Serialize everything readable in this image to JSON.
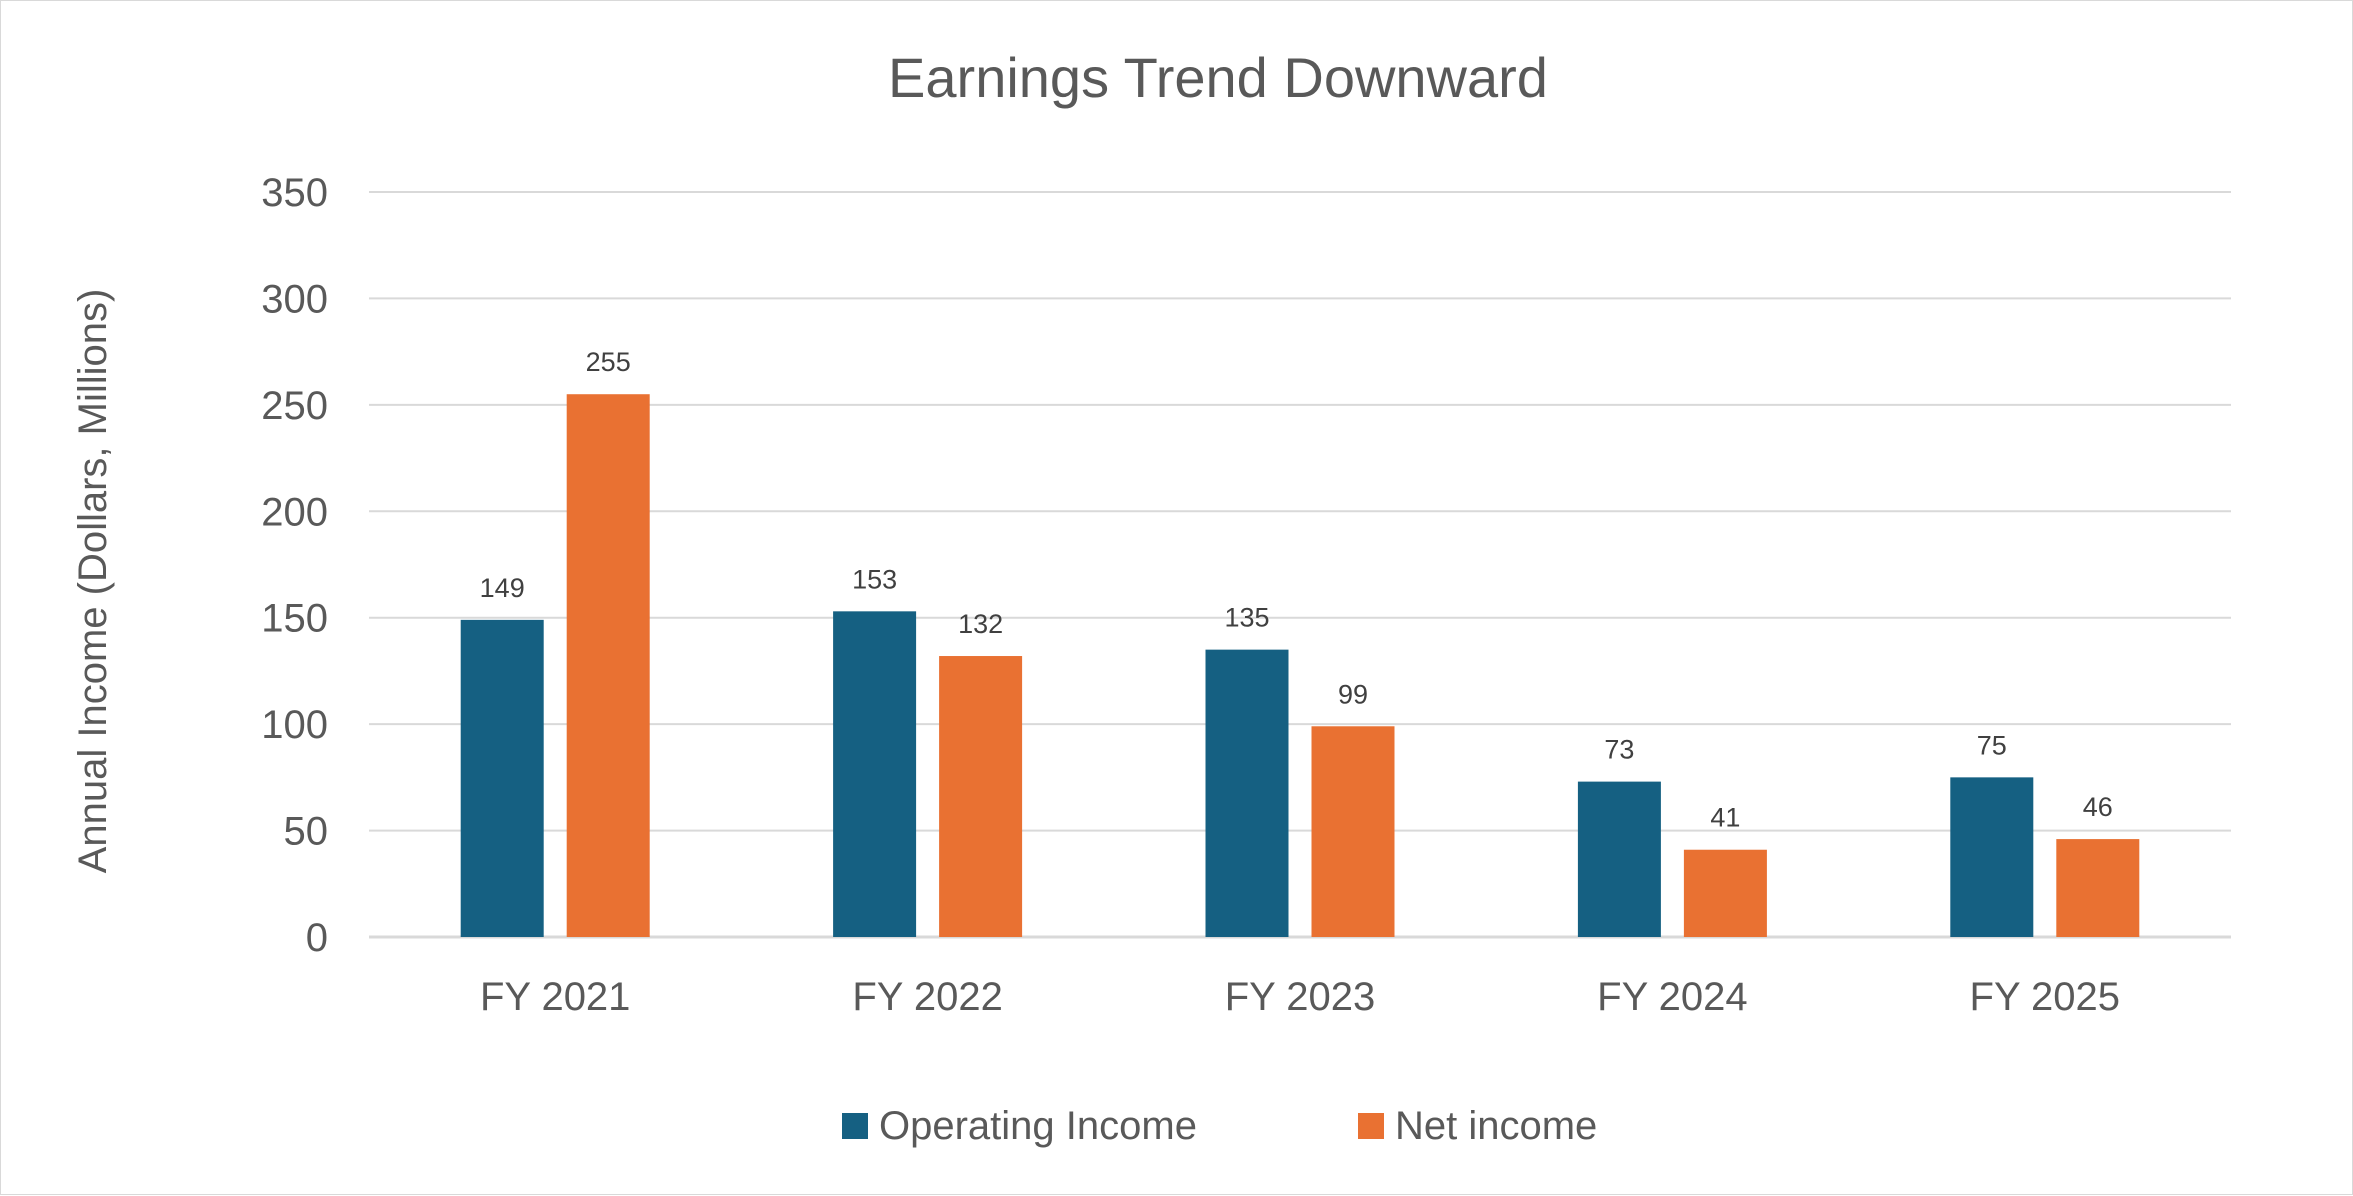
{
  "chart_data": {
    "type": "bar",
    "title": "Earnings Trend Downward",
    "xlabel": "",
    "ylabel": "Annual Income (Dollars, Millions)",
    "ylim": [
      0,
      350
    ],
    "yticks": [
      0,
      50,
      100,
      150,
      200,
      250,
      300,
      350
    ],
    "grid": true,
    "legend_position": "bottom",
    "categories": [
      "FY 2021",
      "FY 2022",
      "FY 2023",
      "FY 2024",
      "FY 2025"
    ],
    "series": [
      {
        "name": "Operating Income",
        "color": "#156082",
        "values": [
          149,
          153,
          135,
          73,
          75
        ]
      },
      {
        "name": "Net income",
        "color": "#E97132",
        "values": [
          255,
          132,
          99,
          41,
          46
        ]
      }
    ]
  }
}
